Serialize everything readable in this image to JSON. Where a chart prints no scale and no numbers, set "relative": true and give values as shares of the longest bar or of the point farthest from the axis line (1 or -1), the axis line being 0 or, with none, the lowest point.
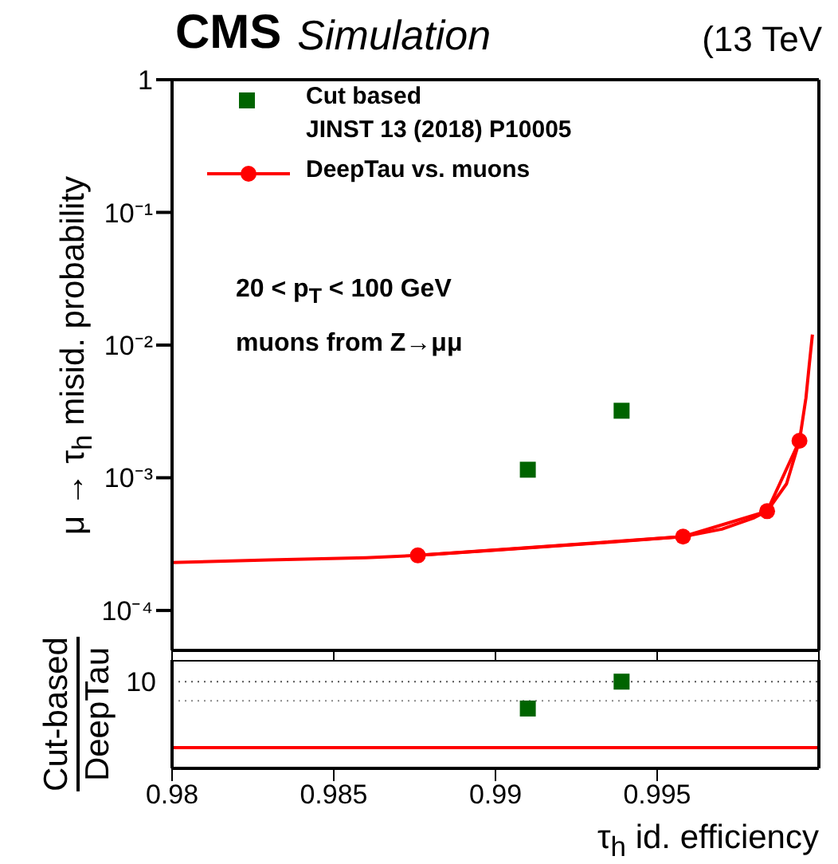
{
  "chart_data": [
    {
      "type": "line",
      "title": "CMS",
      "subtitle": "Simulation",
      "ylabel": "μ → τ$_{h}$ misid. probability",
      "annotations": [
        "(13 TeV",
        "20 < p$_{T}$ < 100 GeV",
        "muons from Z→μμ"
      ],
      "log": "y",
      "xlim": [
        0.98,
        1.0
      ],
      "xticks": [
        0.98,
        0.985,
        0.99,
        0.995,
        1.0
      ],
      "ylim": [
        5e-05,
        1
      ],
      "yticks": [
        {
          "value": 0.0001,
          "label": "10⁻⁴"
        },
        {
          "value": 0.001,
          "label": "10⁻³"
        },
        {
          "value": 0.01,
          "label": "10⁻²"
        },
        {
          "value": 0.1,
          "label": "10⁻¹"
        },
        1
      ],
      "tick_labels": "y",
      "legend": "top left",
      "series": [
        {
          "name": "Cut based\nJINST 13 (2018) P10005",
          "type": "scatter",
          "marker": "square",
          "color": "#006400",
          "x": [
            0.991,
            0.9939
          ],
          "values": [
            0.00115,
            0.0032
          ]
        },
        {
          "name": "DeepTau vs. muons",
          "marker": "circle",
          "color": "#ff0000",
          "x": [
            0.9876,
            0.9958,
            0.9984,
            0.9994
          ],
          "values": [
            0.00026,
            0.00036,
            0.00056,
            0.0019
          ]
        },
        {
          "marker": "none",
          "color": "#ff0000",
          "x": [
            0.98,
            0.983,
            0.986,
            0.9876,
            0.99,
            0.993,
            0.9958,
            0.997,
            0.998,
            0.9984,
            0.999,
            0.9994,
            0.9996,
            0.9997,
            0.9998
          ],
          "values": [
            0.00023,
            0.00024,
            0.00025,
            0.00026,
            0.000285,
            0.00032,
            0.00036,
            0.00041,
            0.0005,
            0.00056,
            0.0009,
            0.0019,
            0.004,
            0.007,
            0.012
          ]
        }
      ]
    },
    {
      "type": "scatter",
      "xlabel": "τ$_{h}$ id. efficiency",
      "ylabel": "Cut-based\nDeepTau",
      "relative": true,
      "annotations": [
        "10"
      ],
      "xlim": [
        0.98,
        1.0
      ],
      "xticks": [
        0.98,
        0.985,
        0.99,
        0.995
      ],
      "ref_lines": [
        {
          "axis": "y",
          "value": 1,
          "color": "#555555",
          "line_style": "dotted"
        },
        {
          "axis": "y",
          "value": 0.78,
          "color": "#888888",
          "line_style": "dotted"
        }
      ],
      "series": [
        {
          "marker": "square",
          "color": "#006400",
          "x": [
            0.991,
            0.9939
          ],
          "values": [
            0.69,
            1
          ]
        },
        {
          "type": "line",
          "marker": "none",
          "color": "#ff0000",
          "x": [
            0.98,
            1.0
          ],
          "values": [
            0.24,
            0.24
          ]
        }
      ]
    }
  ]
}
